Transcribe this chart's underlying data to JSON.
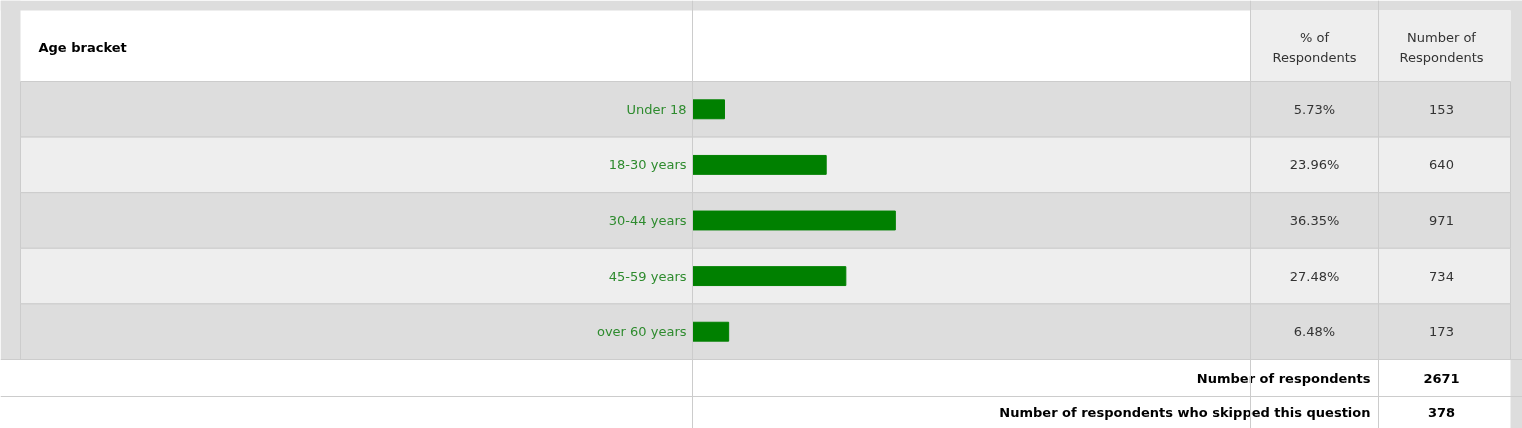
{
  "chart_data": {
    "type": "bar",
    "orientation": "horizontal",
    "title": "Age bracket",
    "categories": [
      "Under 18",
      "18-30 years",
      "30-44 years",
      "45-59 years",
      "over 60 years"
    ],
    "values": [
      5.73,
      23.96,
      36.35,
      27.48,
      6.48
    ],
    "value_labels": [
      "5.73%",
      "23.96%",
      "36.35%",
      "27.48%",
      "6.48%"
    ],
    "color": "#008000",
    "tick_labels": "y",
    "annotations": [
      "% of\nRespondents",
      "Number of\nRespondents",
      "153",
      "640",
      "971",
      "734",
      "173",
      "Number of respondents",
      "2671",
      "Number of respondents who skipped this question",
      "378"
    ]
  }
}
